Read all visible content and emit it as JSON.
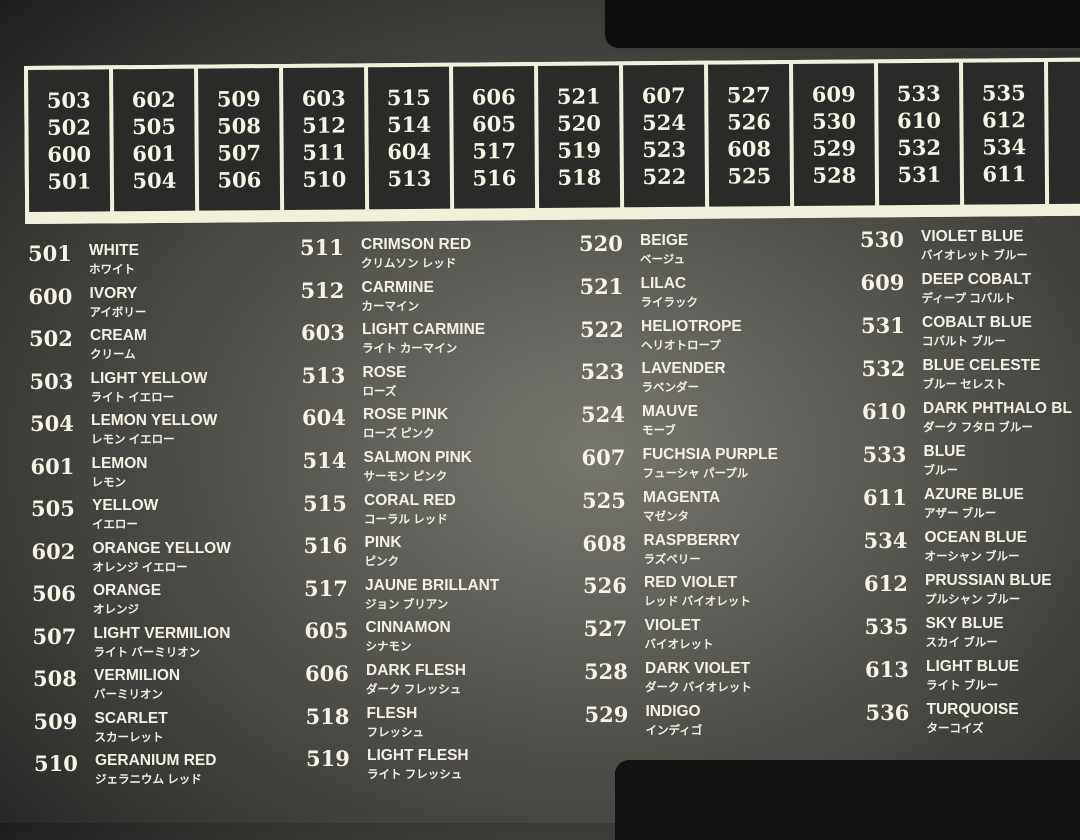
{
  "grid_boxes": [
    [
      "503",
      "502",
      "600",
      "501"
    ],
    [
      "602",
      "505",
      "601",
      "504"
    ],
    [
      "509",
      "508",
      "507",
      "506"
    ],
    [
      "603",
      "512",
      "511",
      "510"
    ],
    [
      "515",
      "514",
      "604",
      "513"
    ],
    [
      "606",
      "605",
      "517",
      "516"
    ],
    [
      "521",
      "520",
      "519",
      "518"
    ],
    [
      "607",
      "524",
      "523",
      "522"
    ],
    [
      "527",
      "526",
      "608",
      "525"
    ],
    [
      "609",
      "530",
      "529",
      "528"
    ],
    [
      "533",
      "610",
      "532",
      "531"
    ],
    [
      "535",
      "612",
      "534",
      "611"
    ]
  ],
  "columns": [
    [
      {
        "code": "501",
        "en": "WHITE",
        "jp": "ホワイト"
      },
      {
        "code": "600",
        "en": "IVORY",
        "jp": "アイボリー"
      },
      {
        "code": "502",
        "en": "CREAM",
        "jp": "クリーム"
      },
      {
        "code": "503",
        "en": "LIGHT YELLOW",
        "jp": "ライト イエロー"
      },
      {
        "code": "504",
        "en": "LEMON YELLOW",
        "jp": "レモン イエロー"
      },
      {
        "code": "601",
        "en": "LEMON",
        "jp": "レモン"
      },
      {
        "code": "505",
        "en": "YELLOW",
        "jp": "イエロー"
      },
      {
        "code": "602",
        "en": "ORANGE YELLOW",
        "jp": "オレンジ イエロー"
      },
      {
        "code": "506",
        "en": "ORANGE",
        "jp": "オレンジ"
      },
      {
        "code": "507",
        "en": "LIGHT VERMILION",
        "jp": "ライト バーミリオン"
      },
      {
        "code": "508",
        "en": "VERMILION",
        "jp": "バーミリオン"
      },
      {
        "code": "509",
        "en": "SCARLET",
        "jp": "スカーレット"
      },
      {
        "code": "510",
        "en": "GERANIUM RED",
        "jp": "ジェラニウム レッド"
      }
    ],
    [
      {
        "code": "511",
        "en": "CRIMSON RED",
        "jp": "クリムソン レッド"
      },
      {
        "code": "512",
        "en": "CARMINE",
        "jp": "カーマイン"
      },
      {
        "code": "603",
        "en": "LIGHT CARMINE",
        "jp": "ライト カーマイン"
      },
      {
        "code": "513",
        "en": "ROSE",
        "jp": "ローズ"
      },
      {
        "code": "604",
        "en": "ROSE PINK",
        "jp": "ローズ ピンク"
      },
      {
        "code": "514",
        "en": "SALMON PINK",
        "jp": "サーモン ピンク"
      },
      {
        "code": "515",
        "en": "CORAL RED",
        "jp": "コーラル レッド"
      },
      {
        "code": "516",
        "en": "PINK",
        "jp": "ピンク"
      },
      {
        "code": "517",
        "en": "JAUNE BRILLANT",
        "jp": "ジョン ブリアン"
      },
      {
        "code": "605",
        "en": "CINNAMON",
        "jp": "シナモン"
      },
      {
        "code": "606",
        "en": "DARK FLESH",
        "jp": "ダーク フレッシュ"
      },
      {
        "code": "518",
        "en": "FLESH",
        "jp": "フレッシュ"
      },
      {
        "code": "519",
        "en": "LIGHT FLESH",
        "jp": "ライト フレッシュ"
      }
    ],
    [
      {
        "code": "520",
        "en": "BEIGE",
        "jp": "ベージュ"
      },
      {
        "code": "521",
        "en": "LILAC",
        "jp": "ライラック"
      },
      {
        "code": "522",
        "en": "HELIOTROPE",
        "jp": "ヘリオトロープ"
      },
      {
        "code": "523",
        "en": "LAVENDER",
        "jp": "ラベンダー"
      },
      {
        "code": "524",
        "en": "MAUVE",
        "jp": "モーブ"
      },
      {
        "code": "607",
        "en": "FUCHSIA PURPLE",
        "jp": "フューシャ パープル"
      },
      {
        "code": "525",
        "en": "MAGENTA",
        "jp": "マゼンタ"
      },
      {
        "code": "608",
        "en": "RASPBERRY",
        "jp": "ラズベリー"
      },
      {
        "code": "526",
        "en": "RED VIOLET",
        "jp": "レッド バイオレット"
      },
      {
        "code": "527",
        "en": "VIOLET",
        "jp": "バイオレット"
      },
      {
        "code": "528",
        "en": "DARK VIOLET",
        "jp": "ダーク バイオレット"
      },
      {
        "code": "529",
        "en": "INDIGO",
        "jp": "インディゴ"
      }
    ],
    [
      {
        "code": "530",
        "en": "VIOLET BLUE",
        "jp": "バイオレット ブルー"
      },
      {
        "code": "609",
        "en": "DEEP COBALT",
        "jp": "ディープ コバルト"
      },
      {
        "code": "531",
        "en": "COBALT BLUE",
        "jp": "コバルト ブルー"
      },
      {
        "code": "532",
        "en": "BLUE CELESTE",
        "jp": "ブルー セレスト"
      },
      {
        "code": "610",
        "en": "DARK PHTHALO BL",
        "jp": "ダーク フタロ ブルー"
      },
      {
        "code": "533",
        "en": "BLUE",
        "jp": "ブルー"
      },
      {
        "code": "611",
        "en": "AZURE BLUE",
        "jp": "アザー ブルー"
      },
      {
        "code": "534",
        "en": "OCEAN BLUE",
        "jp": "オーシャン ブルー"
      },
      {
        "code": "612",
        "en": "PRUSSIAN BLUE",
        "jp": "プルシャン ブルー"
      },
      {
        "code": "535",
        "en": "SKY BLUE",
        "jp": "スカイ ブルー"
      },
      {
        "code": "613",
        "en": "LIGHT BLUE",
        "jp": "ライト ブルー"
      },
      {
        "code": "536",
        "en": "TURQUOISE",
        "jp": "ターコイズ"
      }
    ]
  ]
}
